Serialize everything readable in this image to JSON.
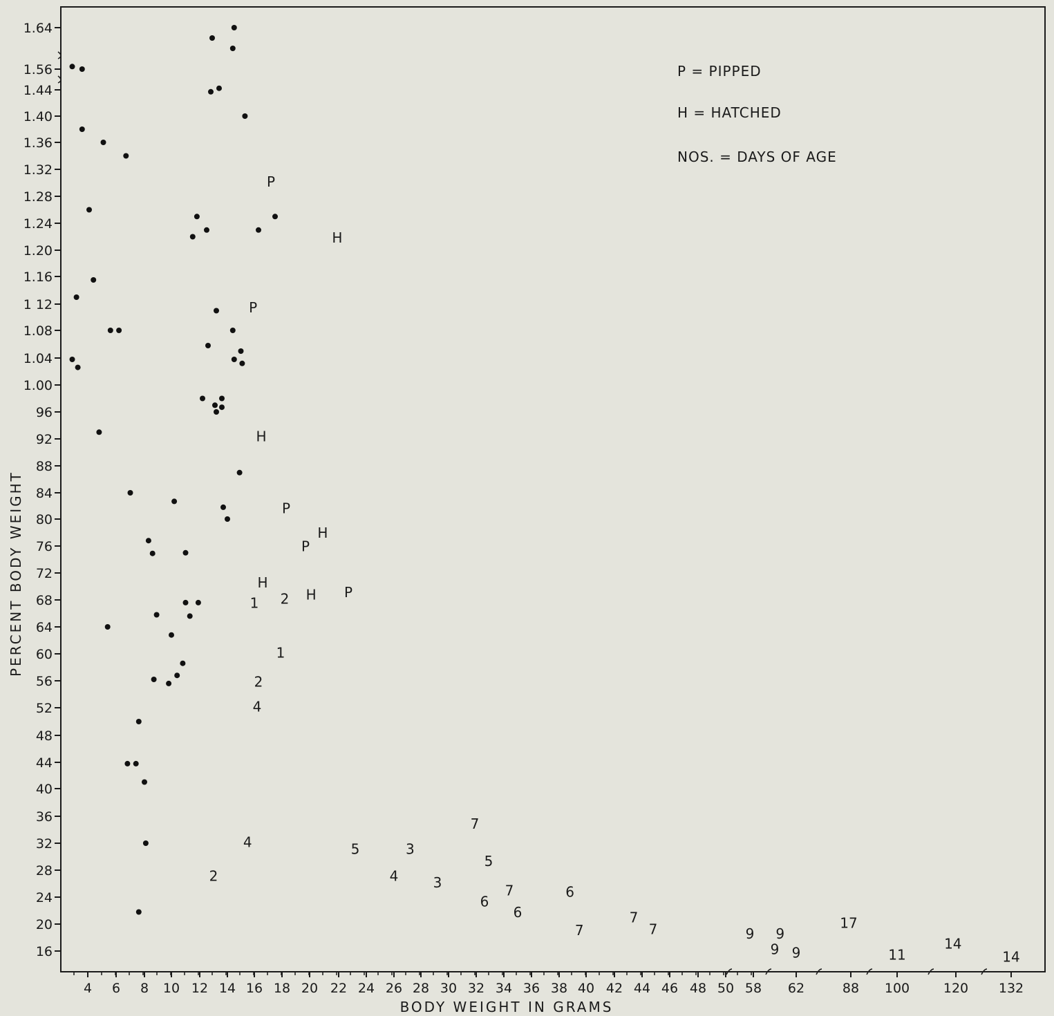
{
  "chart_data": {
    "type": "scatter",
    "title": "",
    "xlabel": "BODY WEIGHT IN GRAMS",
    "ylabel": "PERCENT BODY WEIGHT",
    "x_tick_labels": [
      "4",
      "6",
      "8",
      "10",
      "12",
      "14",
      "16",
      "18",
      "20",
      "22",
      "24",
      "26",
      "28",
      "30",
      "32",
      "34",
      "36",
      "38",
      "40",
      "42",
      "44",
      "46",
      "48",
      "50",
      "58",
      "62",
      "88",
      "100",
      "120",
      "132"
    ],
    "y_tick_labels": [
      "1.64",
      "1.56",
      "1.44",
      "1.40",
      "1.36",
      "1.32",
      "1.28",
      "1.24",
      "1.20",
      "1.16",
      "1 12",
      "1.08",
      "1.04",
      "1.00",
      "96",
      "92",
      "88",
      "84",
      "80",
      "76",
      "72",
      "68",
      "64",
      "60",
      "56",
      "52",
      "48",
      "44",
      "40",
      "36",
      "32",
      "28",
      "24",
      "20",
      "16"
    ],
    "legend": [
      {
        "symbol": "P",
        "text": "P = PIPPED"
      },
      {
        "symbol": "H",
        "text": "H = HATCHED"
      },
      {
        "symbol": "NOS.",
        "text": "NOS. = DAYS OF AGE"
      }
    ],
    "legend_placement": "top-right",
    "grid": false,
    "points": [
      {
        "x": 14.5,
        "y": 1.64,
        "label": "•"
      },
      {
        "x": 12.9,
        "y": 1.62,
        "label": "•"
      },
      {
        "x": 14.4,
        "y": 1.6,
        "label": "•"
      },
      {
        "x": 2.9,
        "y": 1.565,
        "label": "•"
      },
      {
        "x": 3.6,
        "y": 1.56,
        "label": "•"
      },
      {
        "x": 13.4,
        "y": 1.449,
        "label": "•"
      },
      {
        "x": 12.8,
        "y": 1.437,
        "label": "•"
      },
      {
        "x": 15.3,
        "y": 1.4,
        "label": "•"
      },
      {
        "x": 3.6,
        "y": 1.38,
        "label": "•"
      },
      {
        "x": 5.1,
        "y": 1.36,
        "label": "•"
      },
      {
        "x": 6.7,
        "y": 1.34,
        "label": "•"
      },
      {
        "x": 4.1,
        "y": 1.26,
        "label": "•"
      },
      {
        "x": 11.8,
        "y": 1.25,
        "label": "•"
      },
      {
        "x": 17.5,
        "y": 1.25,
        "label": "•"
      },
      {
        "x": 12.5,
        "y": 1.23,
        "label": "•"
      },
      {
        "x": 16.3,
        "y": 1.23,
        "label": "•"
      },
      {
        "x": 11.5,
        "y": 1.22,
        "label": "•"
      },
      {
        "x": 4.4,
        "y": 1.155,
        "label": "•"
      },
      {
        "x": 3.2,
        "y": 1.13,
        "label": "•"
      },
      {
        "x": 13.2,
        "y": 1.11,
        "label": "•"
      },
      {
        "x": 5.6,
        "y": 1.08,
        "label": "•"
      },
      {
        "x": 6.2,
        "y": 1.08,
        "label": "•"
      },
      {
        "x": 14.4,
        "y": 1.08,
        "label": "•"
      },
      {
        "x": 12.6,
        "y": 1.058,
        "label": "•"
      },
      {
        "x": 15.0,
        "y": 1.05,
        "label": "•"
      },
      {
        "x": 2.9,
        "y": 1.038,
        "label": "•"
      },
      {
        "x": 14.5,
        "y": 1.038,
        "label": "•"
      },
      {
        "x": 15.1,
        "y": 1.032,
        "label": "•"
      },
      {
        "x": 3.3,
        "y": 1.026,
        "label": "•"
      },
      {
        "x": 12.2,
        "y": 0.98,
        "label": "•"
      },
      {
        "x": 13.6,
        "y": 0.98,
        "label": "•"
      },
      {
        "x": 13.1,
        "y": 0.97,
        "label": "•"
      },
      {
        "x": 13.6,
        "y": 0.967,
        "label": "•"
      },
      {
        "x": 13.2,
        "y": 0.96,
        "label": "•"
      },
      {
        "x": 4.8,
        "y": 0.93,
        "label": "•"
      },
      {
        "x": 14.9,
        "y": 0.87,
        "label": "•"
      },
      {
        "x": 7.0,
        "y": 0.84,
        "label": "•"
      },
      {
        "x": 10.2,
        "y": 0.827,
        "label": "•"
      },
      {
        "x": 13.7,
        "y": 0.818,
        "label": "•"
      },
      {
        "x": 14.0,
        "y": 0.8,
        "label": "•"
      },
      {
        "x": 8.3,
        "y": 0.768,
        "label": "•"
      },
      {
        "x": 11.0,
        "y": 0.75,
        "label": "•"
      },
      {
        "x": 8.6,
        "y": 0.749,
        "label": "•"
      },
      {
        "x": 11.0,
        "y": 0.676,
        "label": "•"
      },
      {
        "x": 11.9,
        "y": 0.676,
        "label": "•"
      },
      {
        "x": 11.3,
        "y": 0.656,
        "label": "•"
      },
      {
        "x": 8.9,
        "y": 0.658,
        "label": "•"
      },
      {
        "x": 5.4,
        "y": 0.64,
        "label": "•"
      },
      {
        "x": 10.0,
        "y": 0.628,
        "label": "•"
      },
      {
        "x": 10.8,
        "y": 0.586,
        "label": "•"
      },
      {
        "x": 10.4,
        "y": 0.568,
        "label": "•"
      },
      {
        "x": 8.7,
        "y": 0.562,
        "label": "•"
      },
      {
        "x": 9.8,
        "y": 0.556,
        "label": "•"
      },
      {
        "x": 7.6,
        "y": 0.5,
        "label": "•"
      },
      {
        "x": 6.8,
        "y": 0.438,
        "label": "•"
      },
      {
        "x": 7.4,
        "y": 0.438,
        "label": "•"
      },
      {
        "x": 8.0,
        "y": 0.41,
        "label": "•"
      },
      {
        "x": 8.1,
        "y": 0.32,
        "label": "•"
      },
      {
        "x": 7.6,
        "y": 0.218,
        "label": "•"
      },
      {
        "x": 17.2,
        "y": 1.3,
        "label": "P"
      },
      {
        "x": 21.9,
        "y": 1.217,
        "label": "H"
      },
      {
        "x": 15.9,
        "y": 1.113,
        "label": "P"
      },
      {
        "x": 16.5,
        "y": 0.922,
        "label": "H"
      },
      {
        "x": 18.3,
        "y": 0.815,
        "label": "P"
      },
      {
        "x": 20.9,
        "y": 0.778,
        "label": "H"
      },
      {
        "x": 19.7,
        "y": 0.758,
        "label": "P"
      },
      {
        "x": 16.6,
        "y": 0.704,
        "label": "H"
      },
      {
        "x": 20.1,
        "y": 0.686,
        "label": "H"
      },
      {
        "x": 22.7,
        "y": 0.69,
        "label": "P"
      },
      {
        "x": 16.0,
        "y": 0.674,
        "label": "1"
      },
      {
        "x": 18.2,
        "y": 0.68,
        "label": "2"
      },
      {
        "x": 17.9,
        "y": 0.6,
        "label": "1"
      },
      {
        "x": 16.3,
        "y": 0.557,
        "label": "2"
      },
      {
        "x": 16.2,
        "y": 0.52,
        "label": "4"
      },
      {
        "x": 15.5,
        "y": 0.32,
        "label": "4"
      },
      {
        "x": 13.0,
        "y": 0.27,
        "label": "2"
      },
      {
        "x": 23.2,
        "y": 0.31,
        "label": "5"
      },
      {
        "x": 27.2,
        "y": 0.31,
        "label": "3"
      },
      {
        "x": 31.9,
        "y": 0.347,
        "label": "7"
      },
      {
        "x": 32.9,
        "y": 0.292,
        "label": "5"
      },
      {
        "x": 26.0,
        "y": 0.27,
        "label": "4"
      },
      {
        "x": 29.2,
        "y": 0.26,
        "label": "3"
      },
      {
        "x": 34.4,
        "y": 0.248,
        "label": "7"
      },
      {
        "x": 38.8,
        "y": 0.246,
        "label": "6"
      },
      {
        "x": 32.6,
        "y": 0.232,
        "label": "6"
      },
      {
        "x": 35.0,
        "y": 0.216,
        "label": "6"
      },
      {
        "x": 39.5,
        "y": 0.189,
        "label": "7"
      },
      {
        "x": 43.4,
        "y": 0.208,
        "label": "7"
      },
      {
        "x": 44.8,
        "y": 0.191,
        "label": "7"
      },
      {
        "x": 57.0,
        "y": 0.184,
        "label": "9"
      },
      {
        "x": 60.5,
        "y": 0.184,
        "label": "9"
      },
      {
        "x": 60.0,
        "y": 0.161,
        "label": "9"
      },
      {
        "x": 62.0,
        "y": 0.156,
        "label": "9"
      },
      {
        "x": 87.0,
        "y": 0.2,
        "label": "17"
      },
      {
        "x": 100.0,
        "y": 0.153,
        "label": "11"
      },
      {
        "x": 119.0,
        "y": 0.169,
        "label": "14"
      },
      {
        "x": 132.0,
        "y": 0.15,
        "label": "14"
      }
    ]
  }
}
